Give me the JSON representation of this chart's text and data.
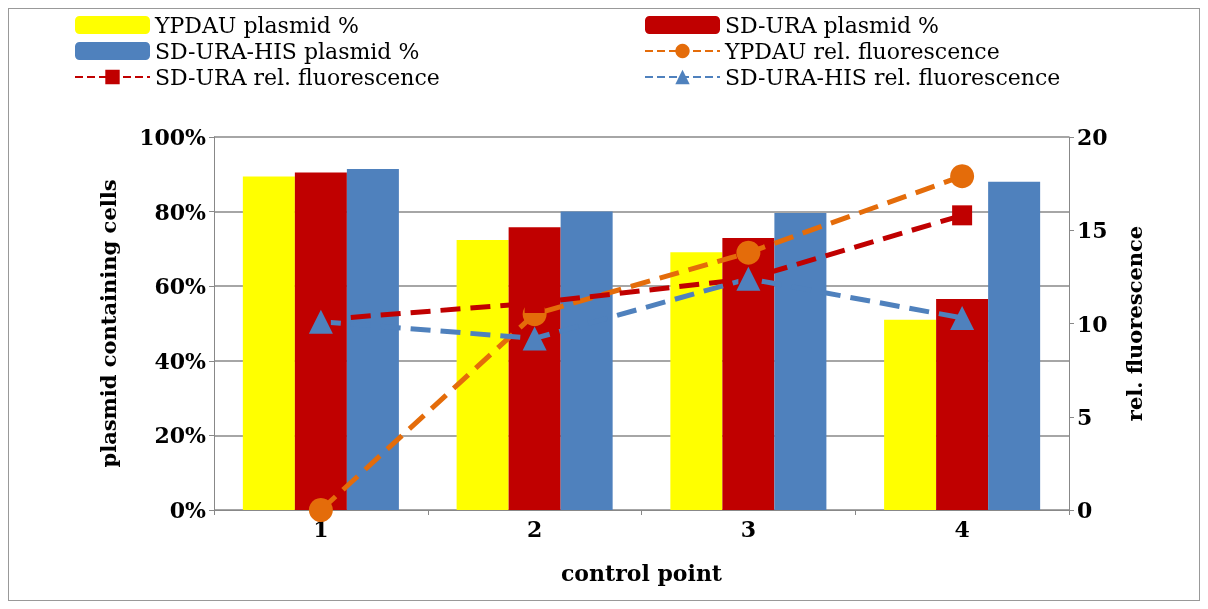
{
  "chart_data": {
    "type": "bar",
    "xlabel": "control point",
    "ylabel": "plasmid containing cells",
    "y2label": "rel. fluorescence",
    "categories": [
      "1",
      "2",
      "3",
      "4"
    ],
    "series": [
      {
        "name": "YPDAU plasmid %",
        "color": "#ffff00",
        "values": [
          89.4,
          72.4,
          69.1,
          51.0
        ]
      },
      {
        "name": "SD-URA plasmid %",
        "color": "#c00000",
        "values": [
          90.5,
          75.8,
          72.9,
          56.6
        ]
      },
      {
        "name": "SD-URA-HIS plasmid %",
        "color": "#4f81bd",
        "values": [
          91.4,
          80.0,
          79.6,
          88.0
        ]
      },
      {
        "name": "YPDAU rel. fluorescence",
        "type": "line",
        "axis": "y2",
        "marker": "circle",
        "color": "#e46c0a",
        "values": [
          0,
          10.5,
          13.8,
          17.9
        ]
      },
      {
        "name": "SD-URA rel. fluorescence",
        "type": "line",
        "axis": "y2",
        "marker": "square",
        "color": "#c00000",
        "values": [
          10.2,
          11.1,
          12.4,
          15.8
        ]
      },
      {
        "name": "SD-URA-HIS rel. fluorescence",
        "type": "line",
        "axis": "y2",
        "marker": "triangle",
        "color": "#4f81bd",
        "values": [
          10.1,
          9.2,
          12.4,
          10.3
        ]
      }
    ],
    "ylim": [
      0,
      100
    ],
    "yticks": [
      {
        "value": 0,
        "label": "0%"
      },
      {
        "value": 20,
        "label": "20%"
      },
      {
        "value": 40,
        "label": "40%"
      },
      {
        "value": 60,
        "label": "60%"
      },
      {
        "value": 80,
        "label": "80%"
      },
      {
        "value": 100,
        "label": "100%"
      }
    ],
    "y2lim": [
      0,
      20
    ],
    "y2ticks": [
      0,
      5,
      10,
      15,
      20
    ],
    "grid": "y",
    "legend": "top",
    "line_style": "dashed"
  }
}
